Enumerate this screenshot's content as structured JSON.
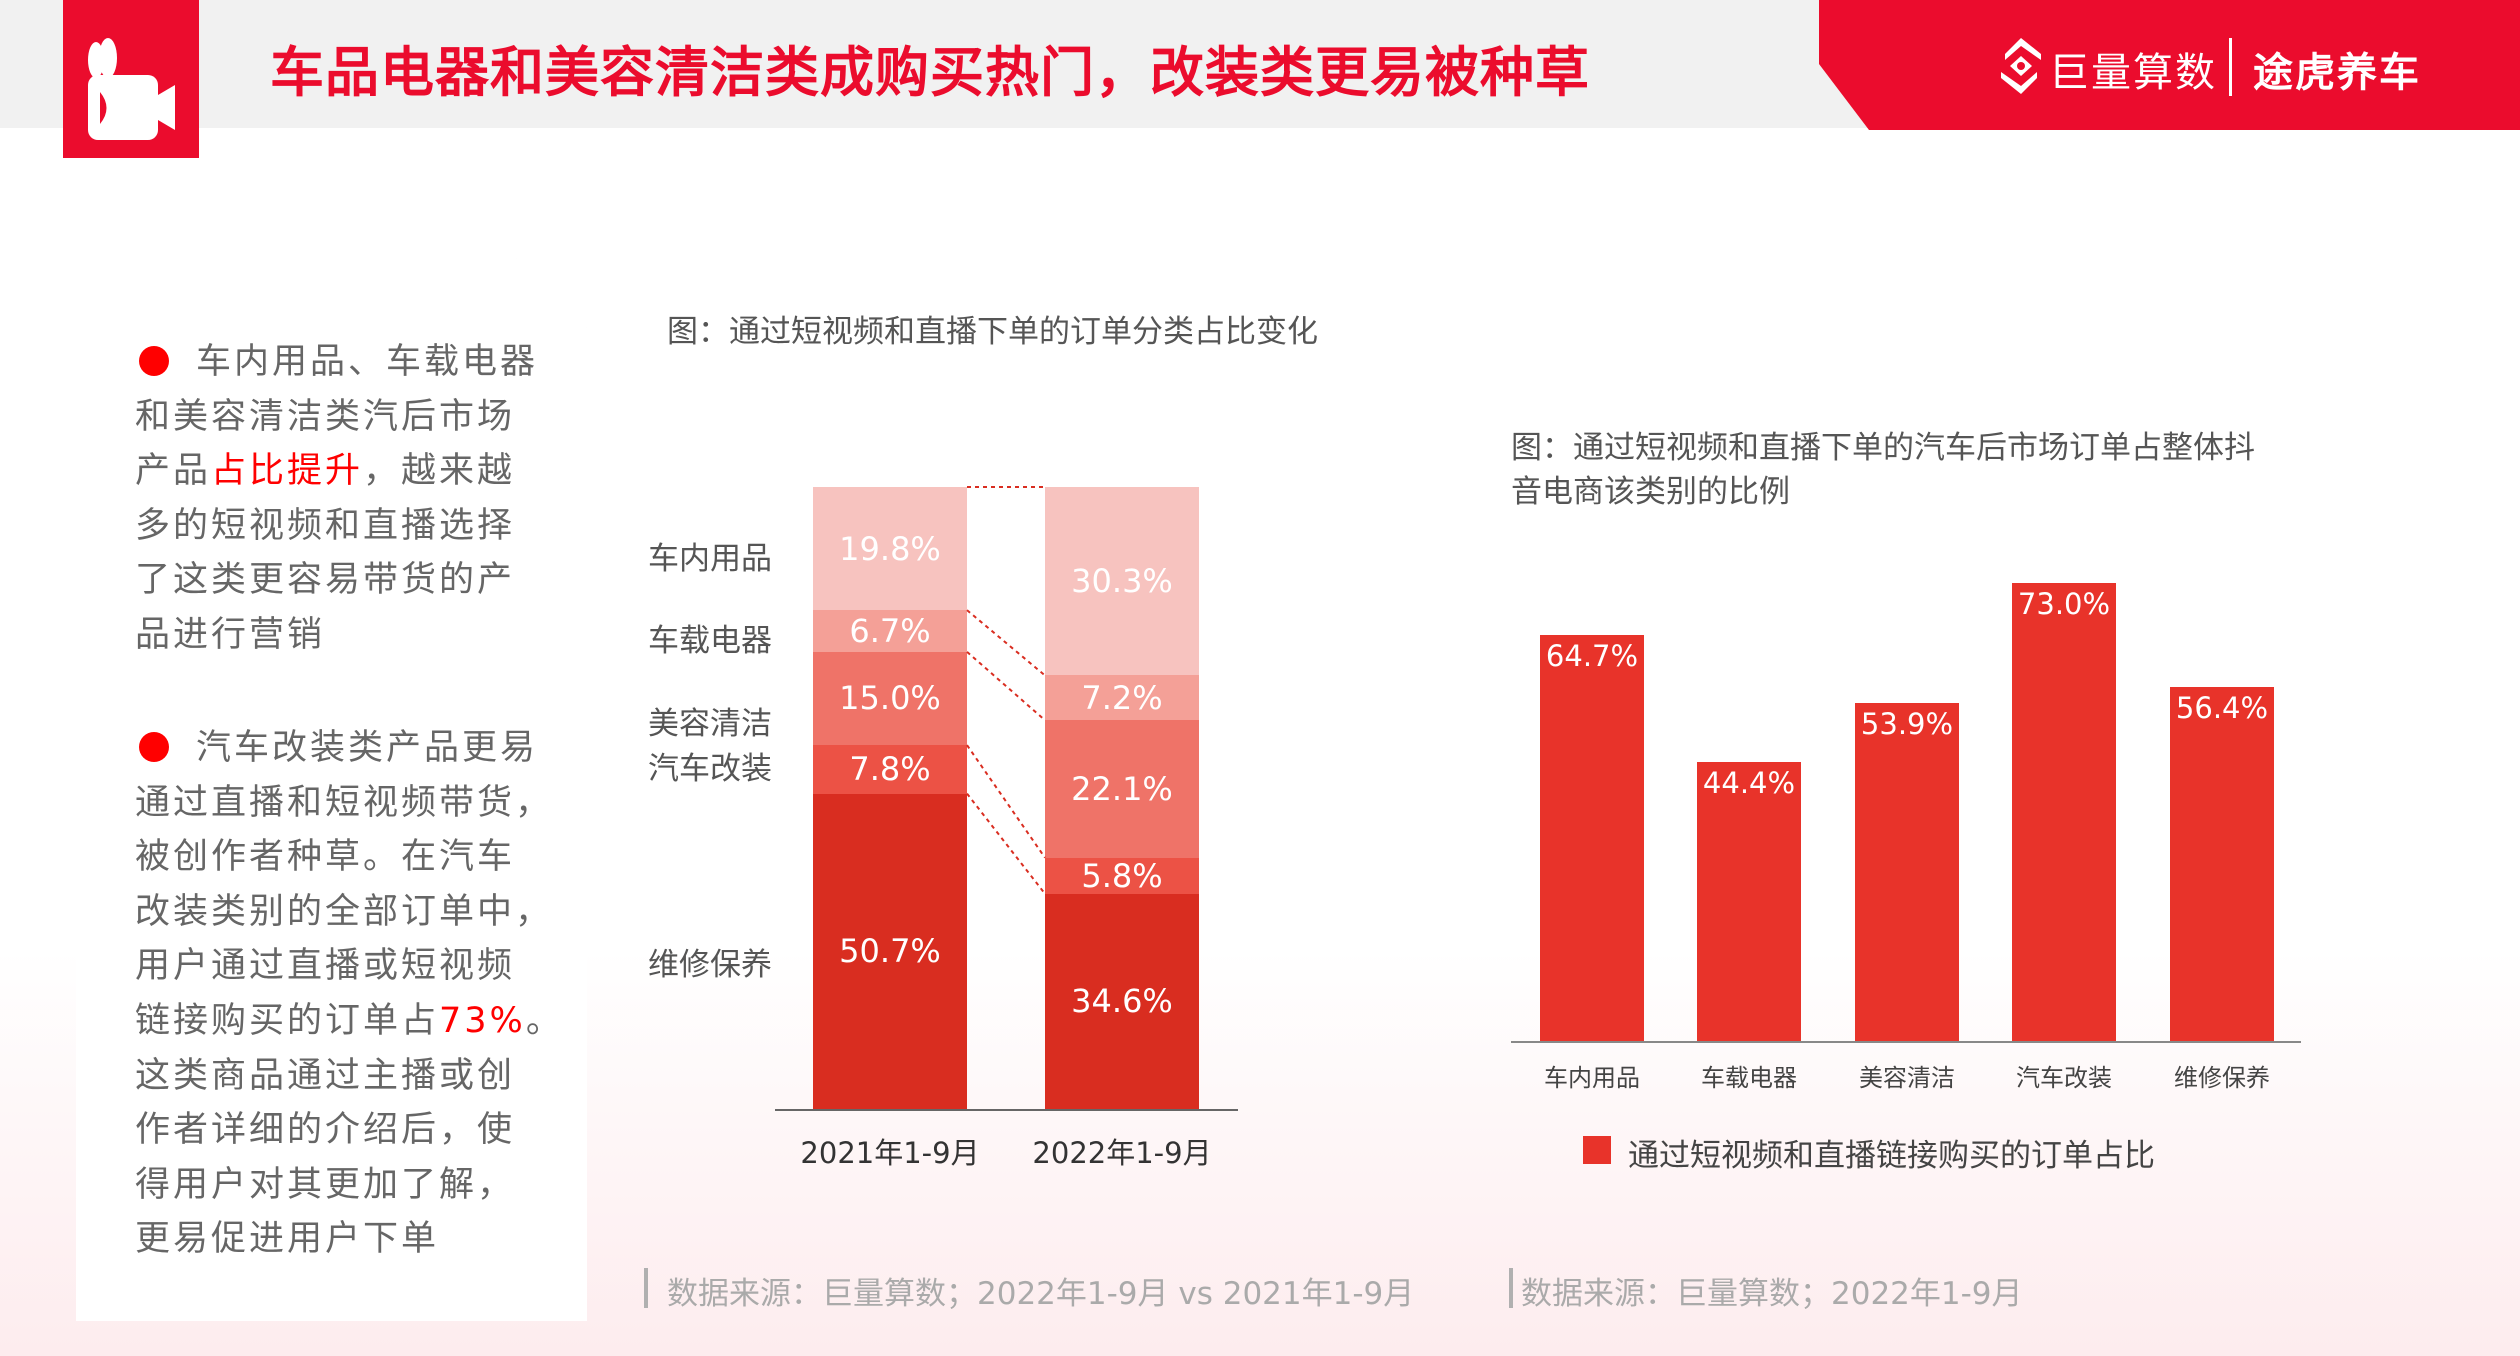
{
  "header": {
    "title": "车品电器和美容清洁类成购买热门，改装类更易被种草",
    "logo_left": "巨量算数",
    "logo_right": "途虎养车"
  },
  "colors": {
    "brand_red": "#eb0c2d",
    "highlight": "#ff0000",
    "bar_red": "#e8332a",
    "segments": [
      "#f7c3bf",
      "#f4a097",
      "#ef7368",
      "#ec5245",
      "#d92d20"
    ]
  },
  "sidebar": {
    "paragraphs": [
      {
        "lines": [
          [
            {
              "t": "车内用品、车载电器"
            }
          ],
          [
            {
              "t": "和美容清洁类汽后市场"
            }
          ],
          [
            {
              "t": "产品"
            },
            {
              "t": "占比提升",
              "hl": true
            },
            {
              "t": "，越来越"
            }
          ],
          [
            {
              "t": "多的短视频和直播选择"
            }
          ],
          [
            {
              "t": "了这类更容易带货的产"
            }
          ],
          [
            {
              "t": "品进行营销"
            }
          ]
        ]
      },
      {
        "lines": [
          [
            {
              "t": "汽车改装类产品更易"
            }
          ],
          [
            {
              "t": "通过直播和短视频带货，"
            }
          ],
          [
            {
              "t": "被创作者种草。在汽车"
            }
          ],
          [
            {
              "t": "改装类别的全部订单中，"
            }
          ],
          [
            {
              "t": "用户通过直播或短视频"
            }
          ],
          [
            {
              "t": "链接购买的订单占"
            },
            {
              "t": "73%",
              "hl": true
            },
            {
              "t": "。"
            }
          ],
          [
            {
              "t": "这类商品通过主播或创"
            }
          ],
          [
            {
              "t": "作者详细的介绍后，使"
            }
          ],
          [
            {
              "t": "得用户对其更加了解，"
            }
          ],
          [
            {
              "t": "更易促进用户下单"
            }
          ]
        ]
      }
    ]
  },
  "chart_data": [
    {
      "type": "bar",
      "stacked": true,
      "title": "图：通过短视频和直播下单的订单分类占比变化",
      "categories": [
        "2021年1-9月",
        "2022年1-9月"
      ],
      "series": [
        {
          "name": "车内用品",
          "values": [
            19.8,
            30.3
          ],
          "labels": [
            "19.8%",
            "30.3%"
          ]
        },
        {
          "name": "车载电器",
          "values": [
            6.7,
            7.2
          ],
          "labels": [
            "6.7%",
            "7.2%"
          ]
        },
        {
          "name": "美容清洁",
          "values": [
            15.0,
            22.1
          ],
          "labels": [
            "15.0%",
            "22.1%"
          ]
        },
        {
          "name": "汽车改装",
          "values": [
            7.8,
            5.8
          ],
          "labels": [
            "7.8%",
            "5.8%"
          ]
        },
        {
          "name": "维修保养",
          "values": [
            50.7,
            34.6
          ],
          "labels": [
            "50.7%",
            "34.6%"
          ]
        }
      ],
      "ylim": [
        0,
        100
      ],
      "source": "数据来源：巨量算数；2022年1-9月 vs 2021年1-9月"
    },
    {
      "type": "bar",
      "title": "图：通过短视频和直播下单的汽车后市场订单占整体抖音电商该类别的比例",
      "title_lines": [
        "图：通过短视频和直播下单的汽车后市场订单占整体抖",
        "音电商该类别的比例"
      ],
      "categories": [
        "车内用品",
        "车载电器",
        "美容清洁",
        "汽车改装",
        "维修保养"
      ],
      "values": [
        64.7,
        44.4,
        53.9,
        73.0,
        56.4
      ],
      "labels": [
        "64.7%",
        "44.4%",
        "53.9%",
        "73.0%",
        "56.4%"
      ],
      "legend": "通过短视频和直播链接购买的订单占比",
      "legend_position": "bottom",
      "ylim": [
        0,
        100
      ],
      "source": "数据来源：巨量算数；2022年1-9月"
    }
  ]
}
